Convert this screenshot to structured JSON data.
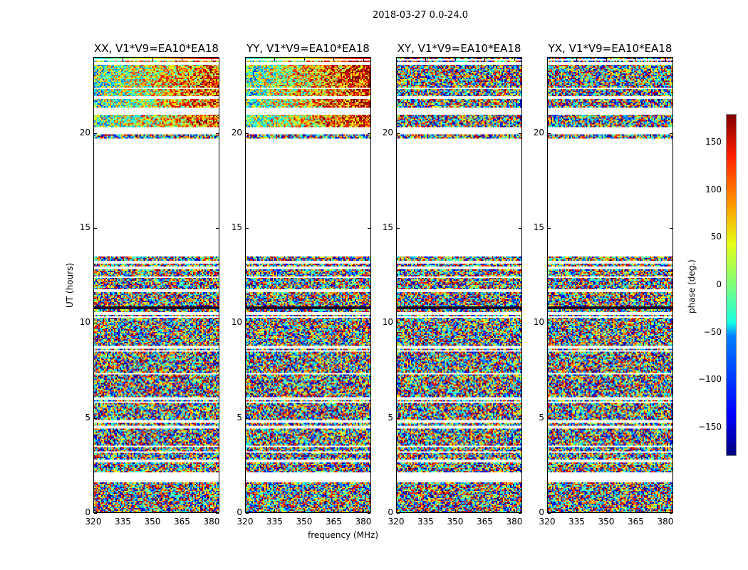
{
  "chart_data": {
    "type": "heatmap",
    "title": "2018-03-27 0.0-24.0",
    "panels": [
      {
        "title": "XX, V1*V9=EA10*EA18",
        "bias": 0.35
      },
      {
        "title": "YY, V1*V9=EA10*EA18",
        "bias": 0.45
      },
      {
        "title": "XY, V1*V9=EA10*EA18",
        "bias": 0.0
      },
      {
        "title": "YX, V1*V9=EA10*EA18",
        "bias": 0.0
      }
    ],
    "xlabel": "frequency (MHz)",
    "ylabel": "UT (hours)",
    "xlim": [
      320,
      384
    ],
    "ylim": [
      0,
      24
    ],
    "xticks": [
      "320",
      "335",
      "350",
      "365",
      "380"
    ],
    "xtick_values": [
      320,
      335,
      350,
      365,
      380
    ],
    "yticks": [
      "0",
      "5",
      "10",
      "15",
      "20"
    ],
    "ytick_values": [
      0,
      5,
      10,
      15,
      20
    ],
    "colormap": "jet",
    "colorbar": {
      "label": "phase (deg.)",
      "clim": [
        -180,
        180
      ],
      "ticks": [
        "150",
        "100",
        "50",
        "0",
        "−50",
        "−100",
        "−150"
      ],
      "tick_values": [
        150,
        100,
        50,
        0,
        -50,
        -100,
        -150
      ]
    },
    "no_data_hours": [
      [
        13.5,
        19.76
      ],
      [
        19.95,
        20.3
      ],
      [
        21.0,
        21.37
      ],
      [
        1.6,
        2.07
      ]
    ],
    "flag_lines_hours": [
      23.9,
      23.7,
      22.4,
      21.9,
      13.2,
      12.9,
      12.4,
      11.7,
      10.5,
      10.3,
      8.7,
      8.5,
      7.3,
      6.0,
      5.8,
      4.8,
      4.5,
      3.5,
      3.2,
      2.7
    ],
    "dark_lines_hours": [
      10.8,
      10.75
    ]
  }
}
